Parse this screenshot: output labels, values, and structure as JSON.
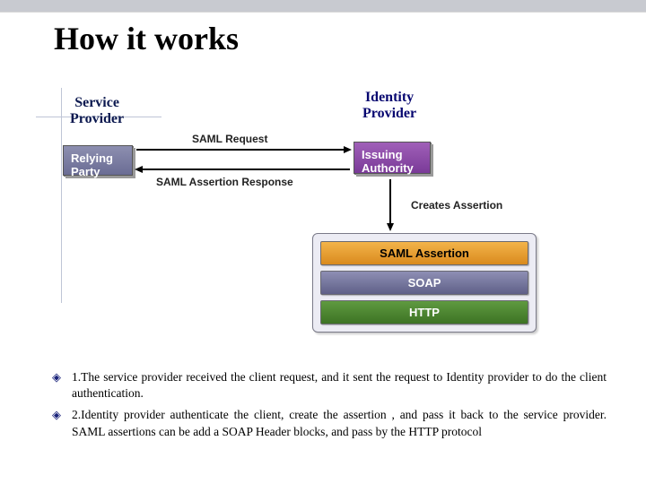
{
  "title": "How it works",
  "diagram": {
    "type": "flowchart",
    "background_color": "#ffffff",
    "topbar_color": "#c8cad0",
    "axis_color": "#bfc5d6",
    "service_provider": {
      "label": "Service\nProvider",
      "color": "#0b184f",
      "fontsize": 16
    },
    "identity_provider": {
      "label": "Identity\nProvider",
      "color": "#060670",
      "fontsize": 16
    },
    "nodes": {
      "relying_party": {
        "label": "Relying\nParty",
        "bg": "#6a6c94",
        "fg": "#ffffff"
      },
      "issuing_authority": {
        "label": "Issuing\nAuthority",
        "bg": "#7a3a98",
        "fg": "#ffffff"
      }
    },
    "arrows": {
      "request": {
        "label": "SAML Request",
        "from": "relying_party",
        "to": "issuing_authority"
      },
      "response": {
        "label": "SAML Assertion Response",
        "from": "issuing_authority",
        "to": "relying_party"
      },
      "creates": {
        "label": "Creates Assertion",
        "from": "issuing_authority",
        "to": "stack"
      }
    },
    "stack": {
      "border_color": "#7a7a88",
      "bg_color": "#ececf4",
      "layers": [
        {
          "label": "SAML Assertion",
          "bg": "#d98a1e",
          "fg": "#000000",
          "style": "orange"
        },
        {
          "label": "SOAP",
          "bg": "#5f6088",
          "fg": "#ffffff",
          "style": "plain"
        },
        {
          "label": "HTTP",
          "bg": "#3d7324",
          "fg": "#ffffff",
          "style": "green"
        }
      ]
    }
  },
  "bullets": [
    "1.The service provider received the client request, and it sent the request to  Identity provider to do the client authentication.",
    "2.Identity provider authenticate the client, create the assertion , and pass it back to the service provider. SAML assertions can be add a SOAP Header blocks, and pass by the HTTP protocol"
  ],
  "bullet_color": "#1a237a",
  "bullet_fontsize": 13.5
}
